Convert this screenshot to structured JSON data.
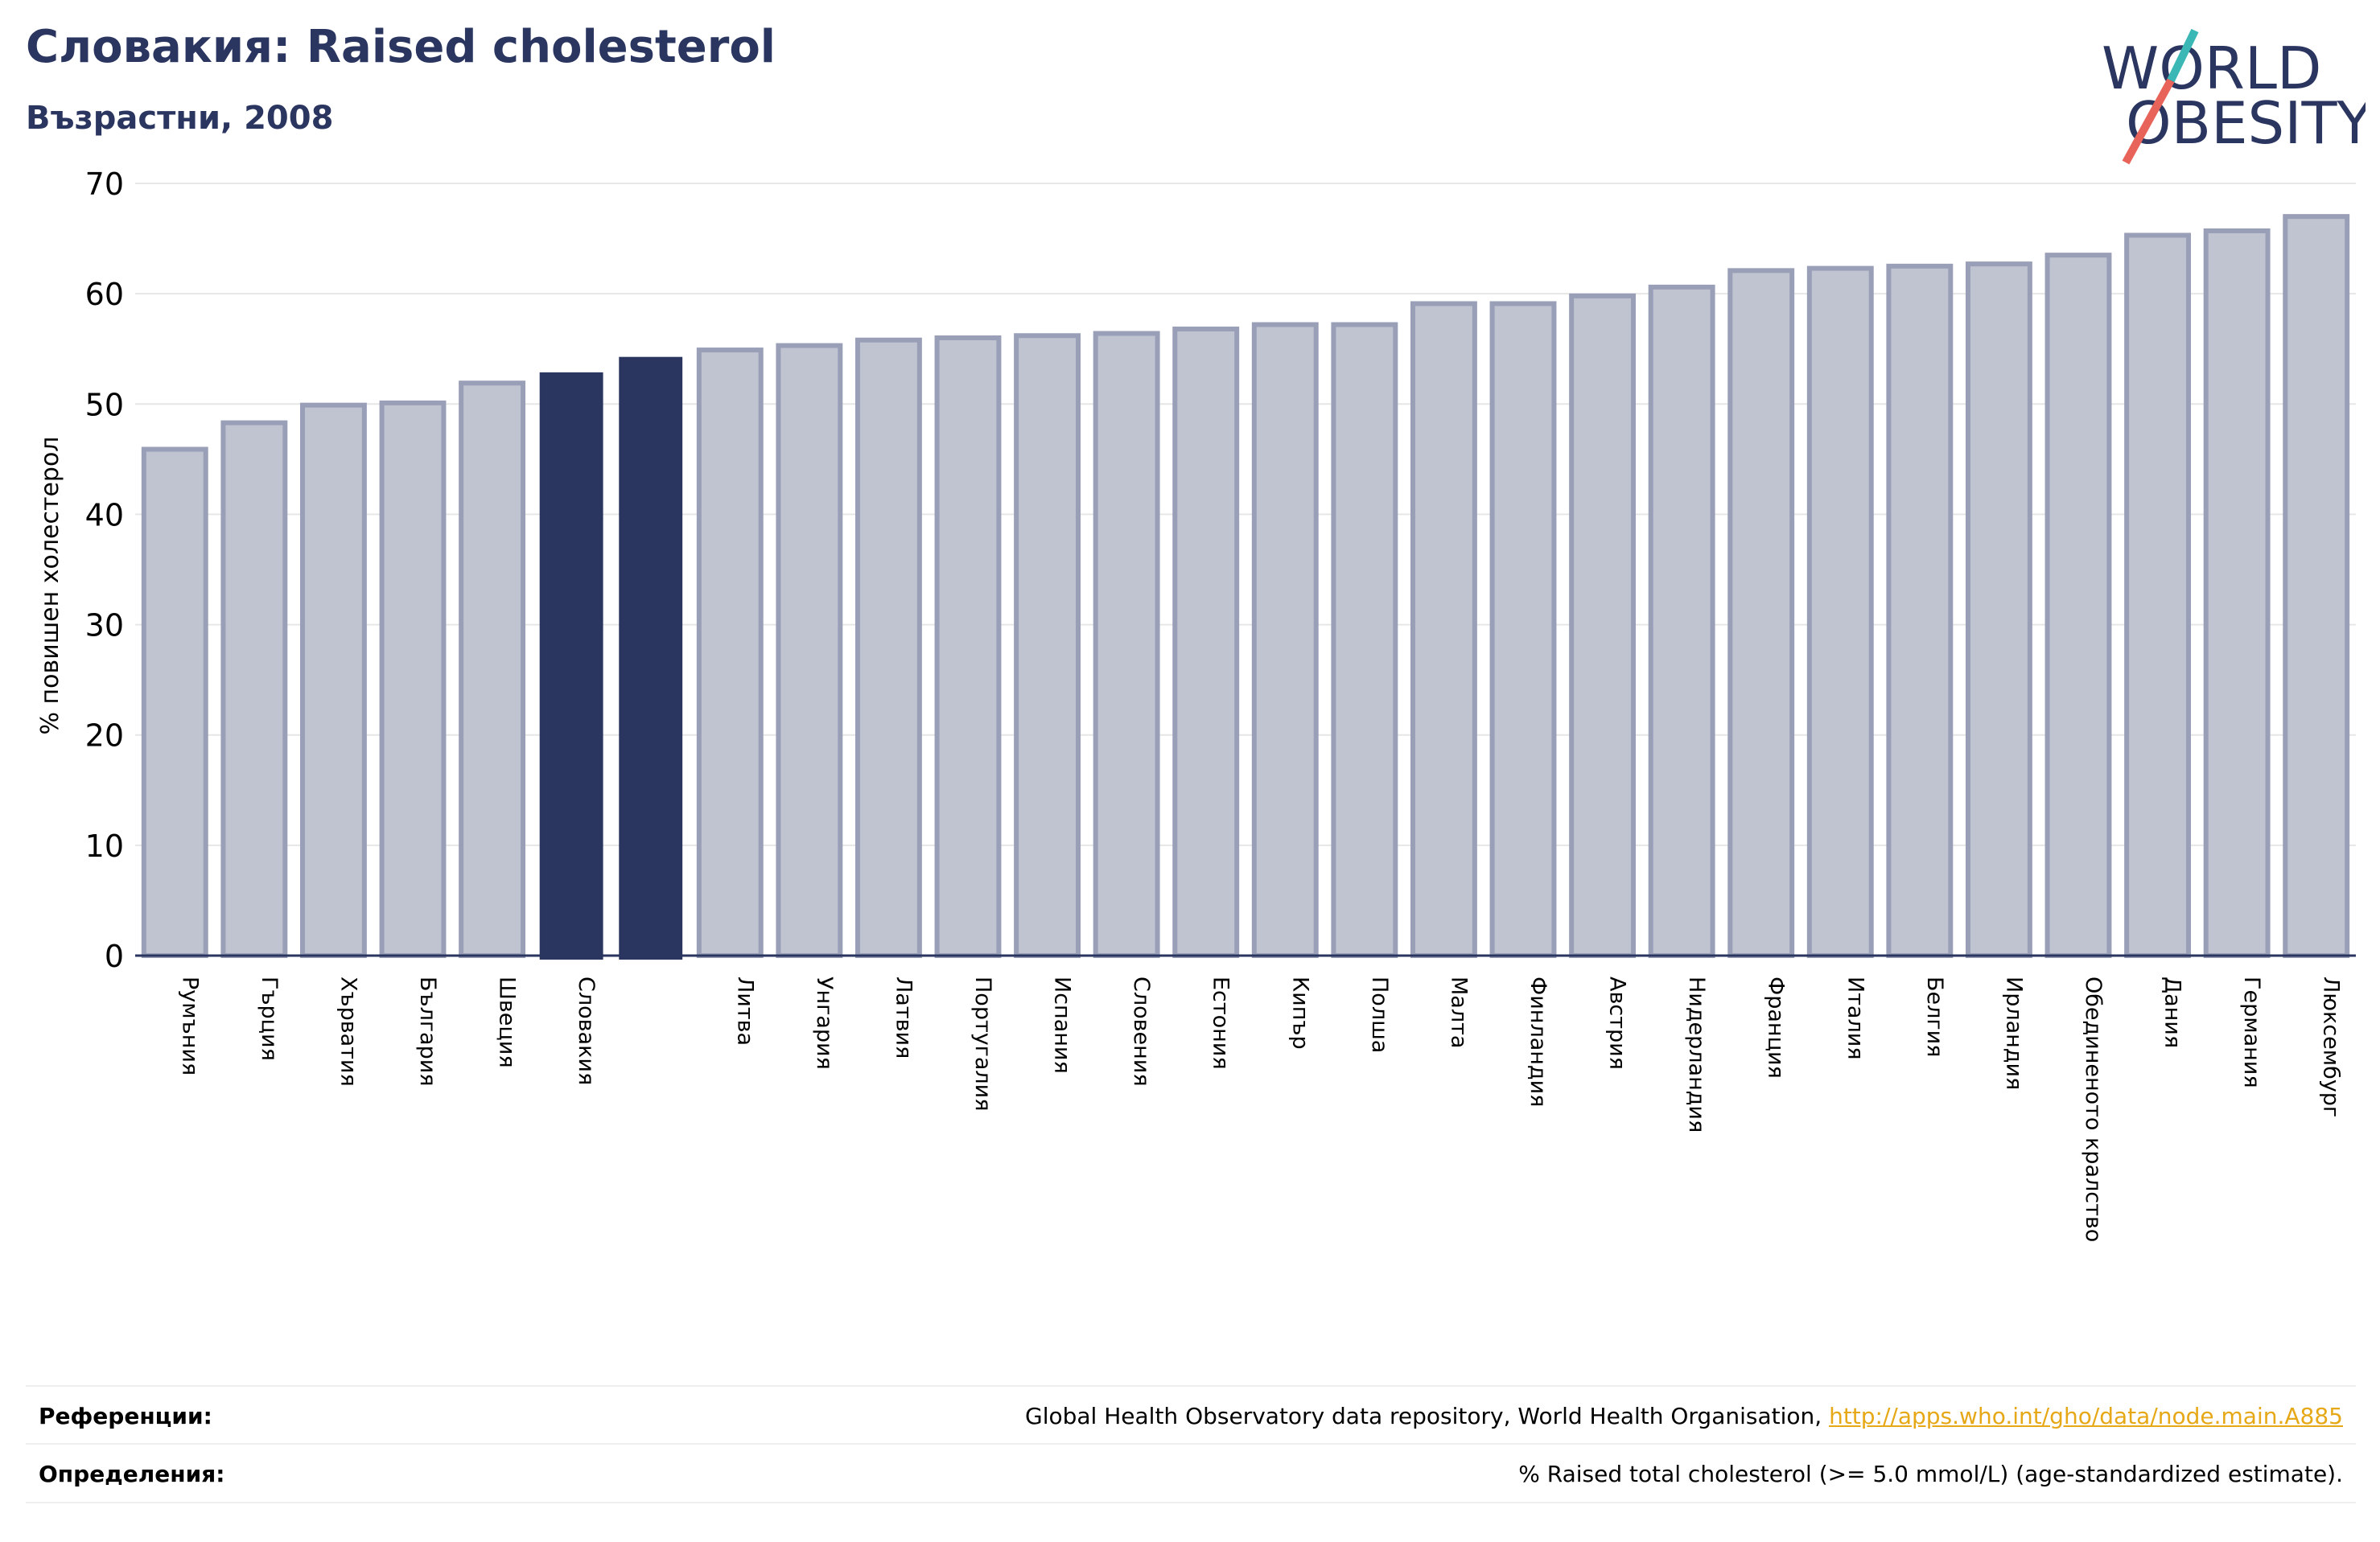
{
  "header": {
    "title": "Словакия: Raised cholesterol",
    "subtitle": "Възрастни, 2008"
  },
  "logo": {
    "line1": "WORLD",
    "line2": "OBESITY",
    "text_color": "#2a3560",
    "slash_color_top": "#3bb8b5",
    "slash_color_bottom": "#e8645a"
  },
  "chart_data": {
    "type": "bar",
    "ylabel": "% повишен холестерол",
    "ylim": [
      0,
      70
    ],
    "yticks": [
      0,
      10,
      20,
      30,
      40,
      50,
      60,
      70
    ],
    "grid": true,
    "colors": {
      "default": "#c0c3d0",
      "default_edge": "#9a9fb8",
      "highlight": "#2a3560"
    },
    "categories": [
      "Румъния",
      "Гърция",
      "Хърватия",
      "България",
      "Швеция",
      "Словакия",
      "",
      "Литва",
      "Унгария",
      "Латвия",
      "Португалия",
      "Испания",
      "Словения",
      "Естония",
      "Кипър",
      "Полша",
      "Малта",
      "Финландия",
      "Австрия",
      "Нидерландия",
      "Франция",
      "Италия",
      "Белгия",
      "Ирландия",
      "Обединеното кралство",
      "Дания",
      "Германия",
      "Люксембург"
    ],
    "values": [
      45.9,
      48.3,
      49.9,
      50.1,
      51.9,
      52.8,
      54.2,
      54.9,
      55.3,
      55.8,
      56.0,
      56.2,
      56.4,
      56.8,
      57.2,
      57.2,
      59.1,
      59.1,
      59.8,
      60.6,
      62.1,
      62.3,
      62.5,
      62.7,
      63.5,
      65.3,
      65.7,
      67.0
    ],
    "highlight": [
      false,
      false,
      false,
      false,
      false,
      true,
      true,
      false,
      false,
      false,
      false,
      false,
      false,
      false,
      false,
      false,
      false,
      false,
      false,
      false,
      false,
      false,
      false,
      false,
      false,
      false,
      false,
      false
    ]
  },
  "footer": {
    "references_label": "Референции:",
    "references_text": "Global Health Observatory data repository, World Health Organisation, ",
    "references_link": "http://apps.who.int/gho/data/node.main.A885",
    "definitions_label": "Определения:",
    "definitions_text": "% Raised total cholesterol (>= 5.0 mmol/L) (age-standardized estimate)."
  }
}
